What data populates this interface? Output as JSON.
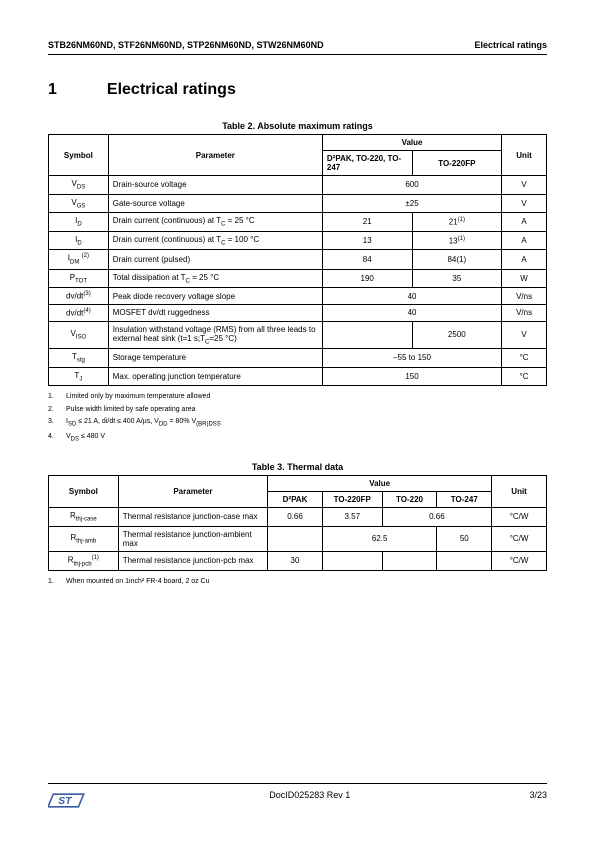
{
  "header": {
    "left": "STB26NM60ND, STF26NM60ND, STP26NM60ND, STW26NM60ND",
    "right": "Electrical ratings"
  },
  "section": {
    "num": "1",
    "title": "Electrical ratings"
  },
  "table2": {
    "caption": "Table 2. Absolute maximum ratings",
    "head_symbol": "Symbol",
    "head_parameter": "Parameter",
    "head_value": "Value",
    "head_unit": "Unit",
    "head_col1": "D²PAK, TO-220, TO-247",
    "head_col2": "TO-220FP",
    "rows": [
      {
        "sym_html": "V<sub>DS</sub>",
        "param": "Drain-source voltage",
        "v1": "600",
        "v2": "",
        "span": 2,
        "unit": "V"
      },
      {
        "sym_html": "V<sub>GS</sub>",
        "param": "Gate-source voltage",
        "v1": "±25",
        "v2": "",
        "span": 2,
        "unit": "V"
      },
      {
        "sym_html": "I<sub>D</sub>",
        "param_html": "Drain current (continuous) at T<sub>C</sub> = 25 °C",
        "v1": "21",
        "v2": "21<sup>(1)</sup>",
        "span": 1,
        "unit": "A"
      },
      {
        "sym_html": "I<sub>D</sub>",
        "param_html": "Drain current (continuous) at T<sub>C</sub> = 100 °C",
        "v1": "13",
        "v2": "13<sup>(1)</sup>",
        "span": 1,
        "unit": "A"
      },
      {
        "sym_html": "I<sub>DM</sub> <sup>(2)</sup>",
        "param": "Drain current (pulsed)",
        "v1": "84",
        "v2": "84(1)",
        "span": 1,
        "unit": "A"
      },
      {
        "sym_html": "P<sub>TOT</sub>",
        "param_html": "Total dissipation at T<sub>C</sub> = 25 °C",
        "v1": "190",
        "v2": "35",
        "span": 1,
        "unit": "W"
      },
      {
        "sym_html": "dv/dt<sup>(3)</sup>",
        "param": "Peak diode recovery voltage slope",
        "v1": "40",
        "v2": "",
        "span": 2,
        "unit": "V/ns"
      },
      {
        "sym_html": "dv/dt<sup>(4)</sup>",
        "param": "MOSFET dv/dt ruggedness",
        "v1": "40",
        "v2": "",
        "span": 2,
        "unit": "V/ns"
      },
      {
        "sym_html": "V<sub>ISO</sub>",
        "param_html": "Insulation withstand voltage (RMS) from all three leads to external heat sink (t=1 s;T<sub>C</sub>=25 °C)",
        "v1": "",
        "v2": "2500",
        "span": 1,
        "unit": "V"
      },
      {
        "sym_html": "T<sub>stg</sub>",
        "param": "Storage temperature",
        "v1": "–55 to 150",
        "v2": "",
        "span": 2,
        "unit": "°C"
      },
      {
        "sym_html": "T<sub>J</sub>",
        "param": "Max. operating junction temperature",
        "v1": "150",
        "v2": "",
        "span": 2,
        "unit": "°C"
      }
    ],
    "footnotes": [
      "Limited only by maximum temperature allowed",
      "Pulse width limited by safe operating area",
      "I<sub>SD</sub> ≤ 21 A, di/dt ≤ 400 A/µs, V<sub>DD</sub> = 80% V<sub>(BR)DSS</sub>",
      "V<sub>DS</sub> ≤ 480 V"
    ]
  },
  "table3": {
    "caption": "Table 3. Thermal data",
    "head_symbol": "Symbol",
    "head_parameter": "Parameter",
    "head_value": "Value",
    "head_unit": "Unit",
    "cols": [
      "D²PAK",
      "TO-220FP",
      "TO-220",
      "TO-247"
    ],
    "rows": [
      {
        "sym_html": "R<sub>thj-case</sub>",
        "param": "Thermal resistance junction-case max",
        "v": [
          "0.66",
          "3.57",
          "0.66",
          ""
        ],
        "merge34": true,
        "unit": "°C/W"
      },
      {
        "sym_html": "R<sub>thj-amb</sub>",
        "param": "Thermal resistance junction-ambient max",
        "v": [
          "",
          "62.5",
          "",
          "50"
        ],
        "merge23": true,
        "unit": "°C/W"
      },
      {
        "sym_html": "R<sub>thj-pcb</sub><sup>(1)</sup>",
        "param": "Thermal resistance junction-pcb max",
        "v": [
          "30",
          "",
          "",
          ""
        ],
        "unit": "°C/W"
      }
    ],
    "footnotes": [
      "When mounted on 1inch² FR-4 board, 2 oz Cu"
    ]
  },
  "footer": {
    "docid": "DocID025283 Rev 1",
    "page": "3/23"
  }
}
